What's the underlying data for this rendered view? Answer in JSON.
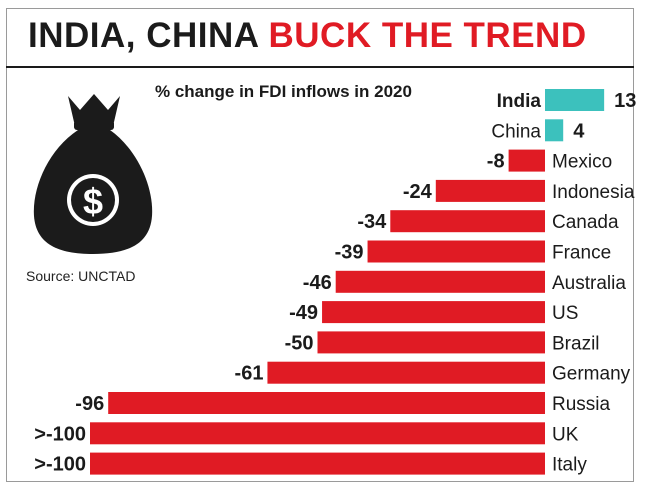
{
  "header": {
    "title_part1": "INDIA, CHINA",
    "title_part2": "BUCK THE TREND"
  },
  "source": "Source: UNCTAD",
  "colors": {
    "negative": "#e01b24",
    "positive": "#3cc1bd",
    "accent_text": "#e01b24"
  },
  "icons": {
    "bag": "money-bag-dollar-icon"
  },
  "chart_data": {
    "type": "bar",
    "orientation": "horizontal",
    "title": "% change in FDI inflows in 2020",
    "categories": [
      "India",
      "China",
      "Mexico",
      "Indonesia",
      "Canada",
      "France",
      "Australia",
      "US",
      "Brazil",
      "Germany",
      "Russia",
      "UK",
      "Italy"
    ],
    "values": [
      13,
      4,
      -8,
      -24,
      -34,
      -39,
      -46,
      -49,
      -50,
      -61,
      -96,
      -100,
      -100
    ],
    "labels": [
      "13",
      "4",
      "-8",
      "-24",
      "-34",
      "-39",
      "-46",
      "-49",
      "-50",
      "-61",
      "-96",
      ">-100",
      ">-100"
    ],
    "xlim": [
      -100,
      13
    ],
    "grid": false,
    "legend": "none"
  }
}
